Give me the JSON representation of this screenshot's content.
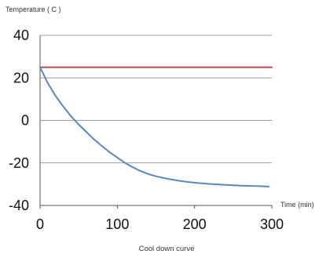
{
  "chart_data": {
    "type": "line",
    "title": "",
    "ylabel": "Temperature ( C )",
    "xlabel": "Time (min)",
    "caption": "Cool down curve",
    "xlim": [
      0,
      300
    ],
    "ylim": [
      -40,
      40
    ],
    "xticks": [
      0,
      100,
      200,
      300
    ],
    "yticks": [
      40,
      20,
      0,
      -20,
      -40
    ],
    "grid": true,
    "legend": "none",
    "series": [
      {
        "color": "#c0504d",
        "x": [
          0,
          300
        ],
        "y": [
          25,
          25
        ]
      },
      {
        "color": "#5b87b8",
        "x": [
          0,
          10,
          20,
          30,
          40,
          50,
          60,
          70,
          80,
          90,
          100,
          110,
          120,
          130,
          140,
          150,
          160,
          170,
          180,
          190,
          200,
          210,
          220,
          230,
          240,
          250,
          260,
          270,
          280,
          290,
          296
        ],
        "y": [
          25,
          17.5,
          11.5,
          6.5,
          2.0,
          -2.0,
          -5.5,
          -9.0,
          -12.0,
          -15.0,
          -17.5,
          -20.0,
          -22.0,
          -23.8,
          -25.2,
          -26.3,
          -27.1,
          -27.8,
          -28.4,
          -28.9,
          -29.3,
          -29.6,
          -29.9,
          -30.1,
          -30.3,
          -30.5,
          -30.7,
          -30.8,
          -30.9,
          -31.0,
          -31.1
        ]
      }
    ]
  }
}
